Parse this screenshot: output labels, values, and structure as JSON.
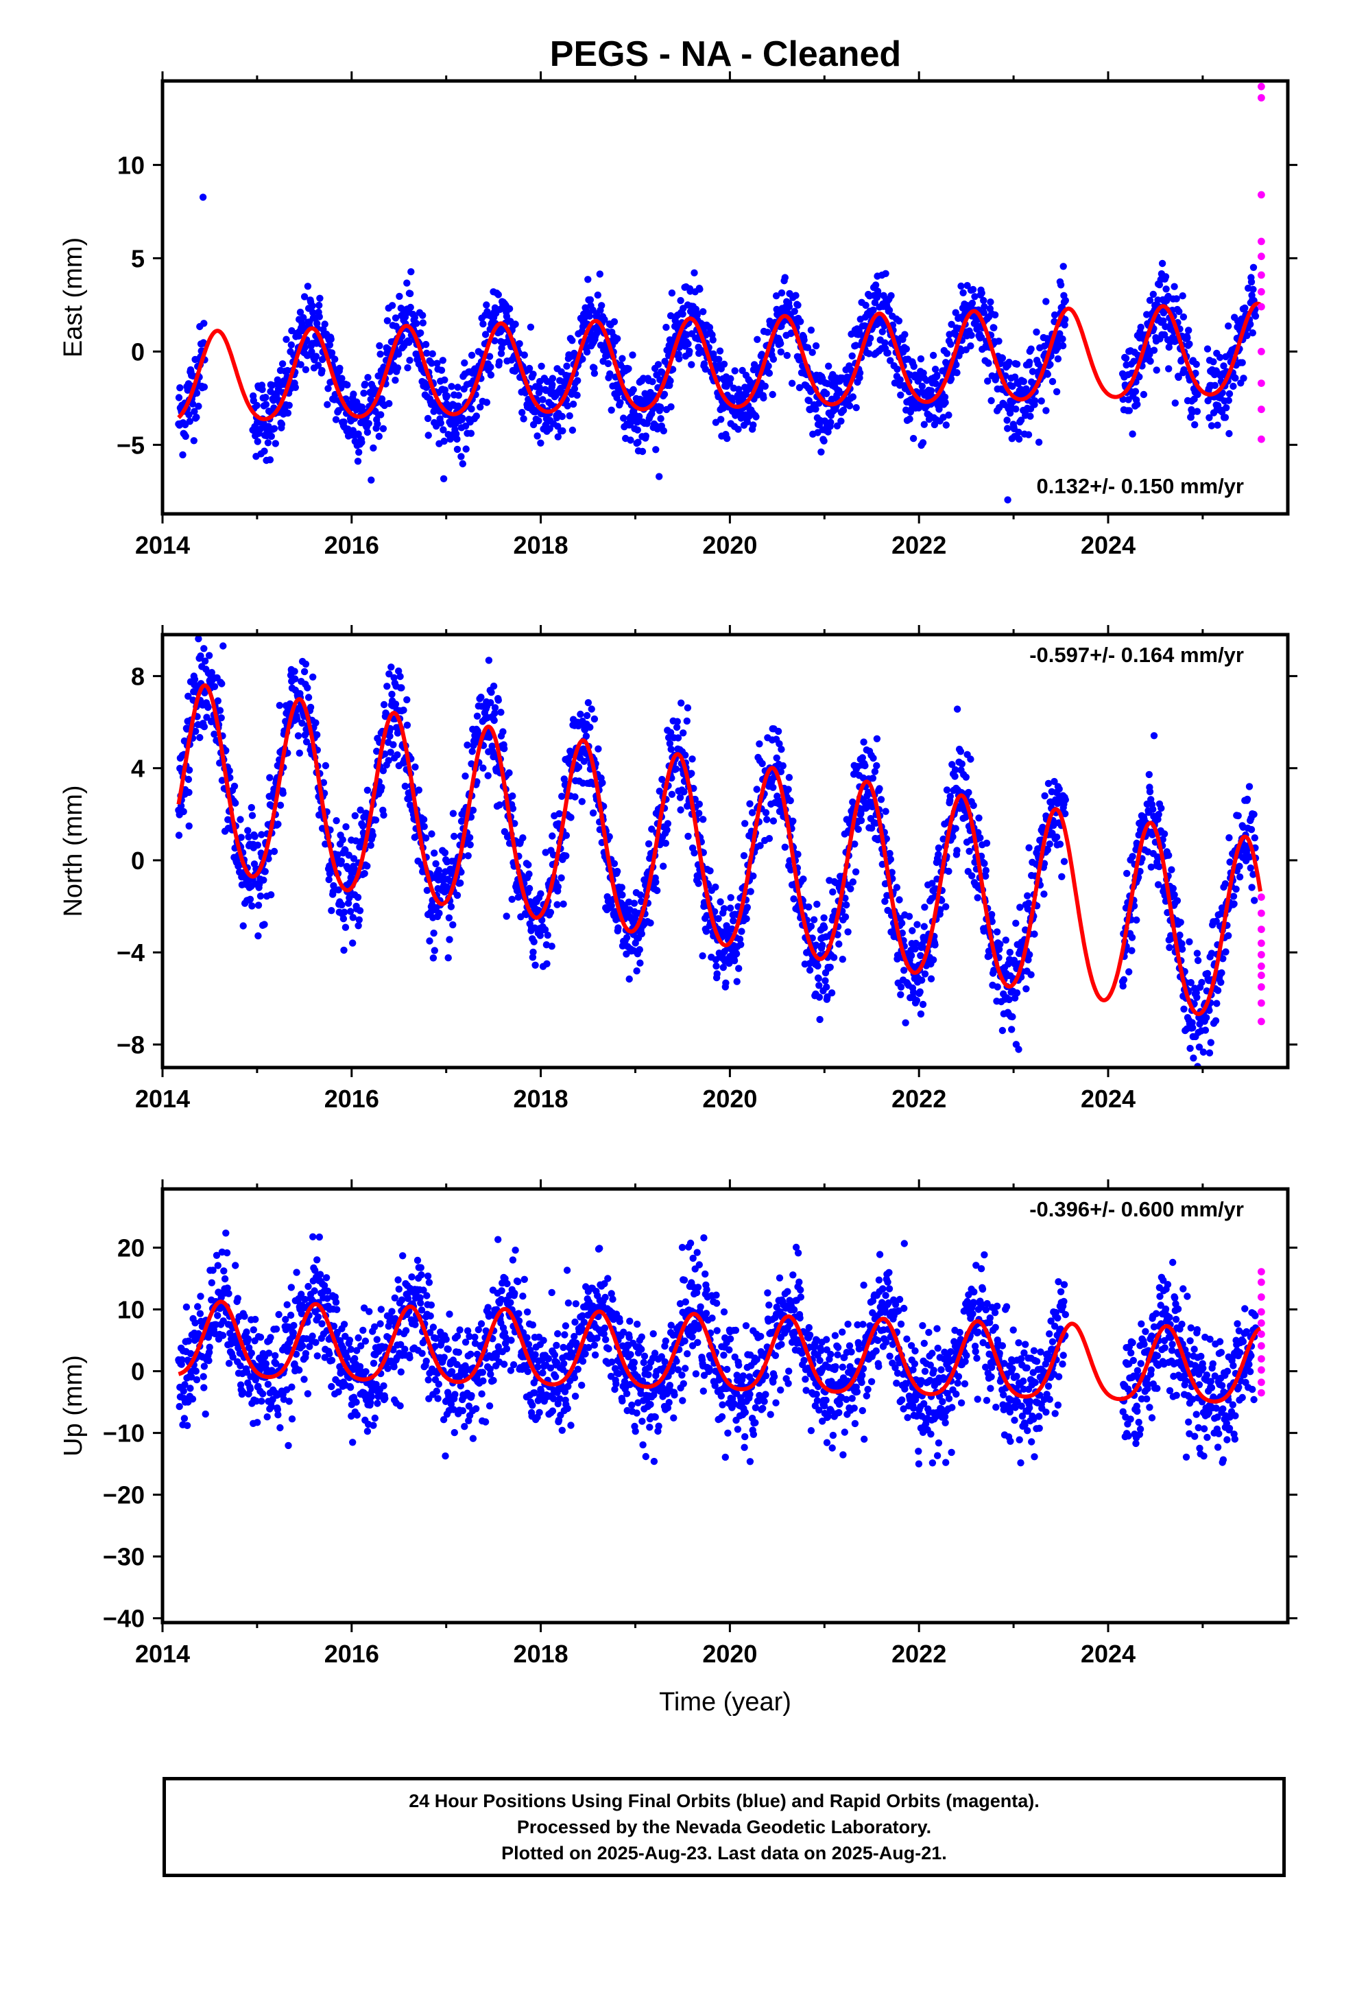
{
  "title": "PEGS  - NA - Cleaned",
  "colors": {
    "final_orbits": "#0000ff",
    "rapid_orbits": "#ff00ff",
    "model": "#ff0000",
    "frame": "#000000"
  },
  "chart_data": [
    {
      "type": "scatter",
      "name": "east",
      "ylabel": "East (mm)",
      "xlabel": "",
      "xlim": [
        2014.0,
        2025.9
      ],
      "ylim": [
        -8.7,
        14.5
      ],
      "xticks": [
        2014,
        2016,
        2018,
        2020,
        2022,
        2024
      ],
      "xtick_labels": [
        "2014",
        "2016",
        "2018",
        "2020",
        "2022",
        "2024"
      ],
      "yticks": [
        -5,
        0,
        5,
        10
      ],
      "ytick_labels": [
        "−5",
        "0",
        "5",
        "10"
      ],
      "rate_text": "0.132+/- 0.150 mm/yr",
      "rate_position": "bottom-right",
      "model": {
        "offset": -0.9,
        "rate": 0.132,
        "amplitude": 2.4,
        "phase_year": 0.58,
        "semiannual": 0.3,
        "t0": 2019.8
      },
      "gaps": [
        [
          2014.45,
          2014.95
        ],
        [
          2023.55,
          2024.15
        ],
        [
          2024.95,
          2025.05
        ]
      ],
      "scatter_std": 1.1,
      "data_range": [
        2014.17,
        2025.56
      ],
      "rapid_points": {
        "x": 2025.62,
        "values": [
          14.2,
          13.6,
          8.4,
          5.9,
          5.1,
          4.1,
          3.2,
          2.4,
          0.0,
          -1.7,
          -3.1,
          -4.7
        ]
      }
    },
    {
      "type": "scatter",
      "name": "north",
      "ylabel": "North (mm)",
      "xlabel": "",
      "xlim": [
        2014.0,
        2025.9
      ],
      "ylim": [
        -9.0,
        9.8
      ],
      "xticks": [
        2014,
        2016,
        2018,
        2020,
        2022,
        2024
      ],
      "xtick_labels": [
        "2014",
        "2016",
        "2018",
        "2020",
        "2022",
        "2024"
      ],
      "yticks": [
        -8,
        -4,
        0,
        4,
        8
      ],
      "ytick_labels": [
        "−8",
        "−4",
        "0",
        "4",
        "8"
      ],
      "rate_text": "-0.597+/- 0.164 mm/yr",
      "rate_position": "top-right",
      "model": {
        "offset": 0.1,
        "rate": -0.597,
        "amplitude": 4.0,
        "phase_year": 0.45,
        "semiannual": 0.3,
        "t0": 2019.8
      },
      "gaps": [
        [
          2023.55,
          2024.15
        ]
      ],
      "scatter_std": 1.1,
      "data_range": [
        2014.17,
        2025.56
      ],
      "rapid_points": {
        "x": 2025.62,
        "values": [
          -1.6,
          -2.3,
          -3.0,
          -3.6,
          -4.1,
          -4.6,
          -5.0,
          -5.5,
          -6.2,
          -7.0
        ]
      }
    },
    {
      "type": "scatter",
      "name": "up",
      "ylabel": "Up (mm)",
      "xlabel": "Time (year)",
      "xlim": [
        2014.0,
        2025.9
      ],
      "ylim": [
        -40.7,
        29.5
      ],
      "xticks": [
        2014,
        2016,
        2018,
        2020,
        2022,
        2024
      ],
      "xtick_labels": [
        "2014",
        "2016",
        "2018",
        "2020",
        "2022",
        "2024"
      ],
      "yticks": [
        -40,
        -30,
        -20,
        -10,
        0,
        10,
        20
      ],
      "ytick_labels": [
        "−40",
        "−30",
        "−20",
        "−10",
        "0",
        "10",
        "20"
      ],
      "rate_text": "-0.396+/- 0.600 mm/yr",
      "rate_position": "top-right",
      "model": {
        "offset": 2.2,
        "rate": -0.396,
        "amplitude": 6.0,
        "phase_year": 0.62,
        "semiannual": 1.0,
        "t0": 2019.8
      },
      "gaps": [
        [
          2023.55,
          2024.15
        ]
      ],
      "scatter_std": 4.5,
      "data_range": [
        2014.17,
        2025.56
      ],
      "rapid_points": {
        "x": 2025.62,
        "values": [
          16.1,
          14.4,
          12.0,
          9.6,
          7.8,
          6.0,
          4.1,
          2.0,
          0.2,
          -1.8,
          -3.5
        ]
      }
    }
  ],
  "footer": {
    "line1": "24 Hour Positions Using Final Orbits (blue) and Rapid Orbits (magenta).",
    "line2": "Processed by the Nevada Geodetic Laboratory.",
    "line3": "Plotted on 2025-Aug-23. Last data on 2025-Aug-21."
  }
}
